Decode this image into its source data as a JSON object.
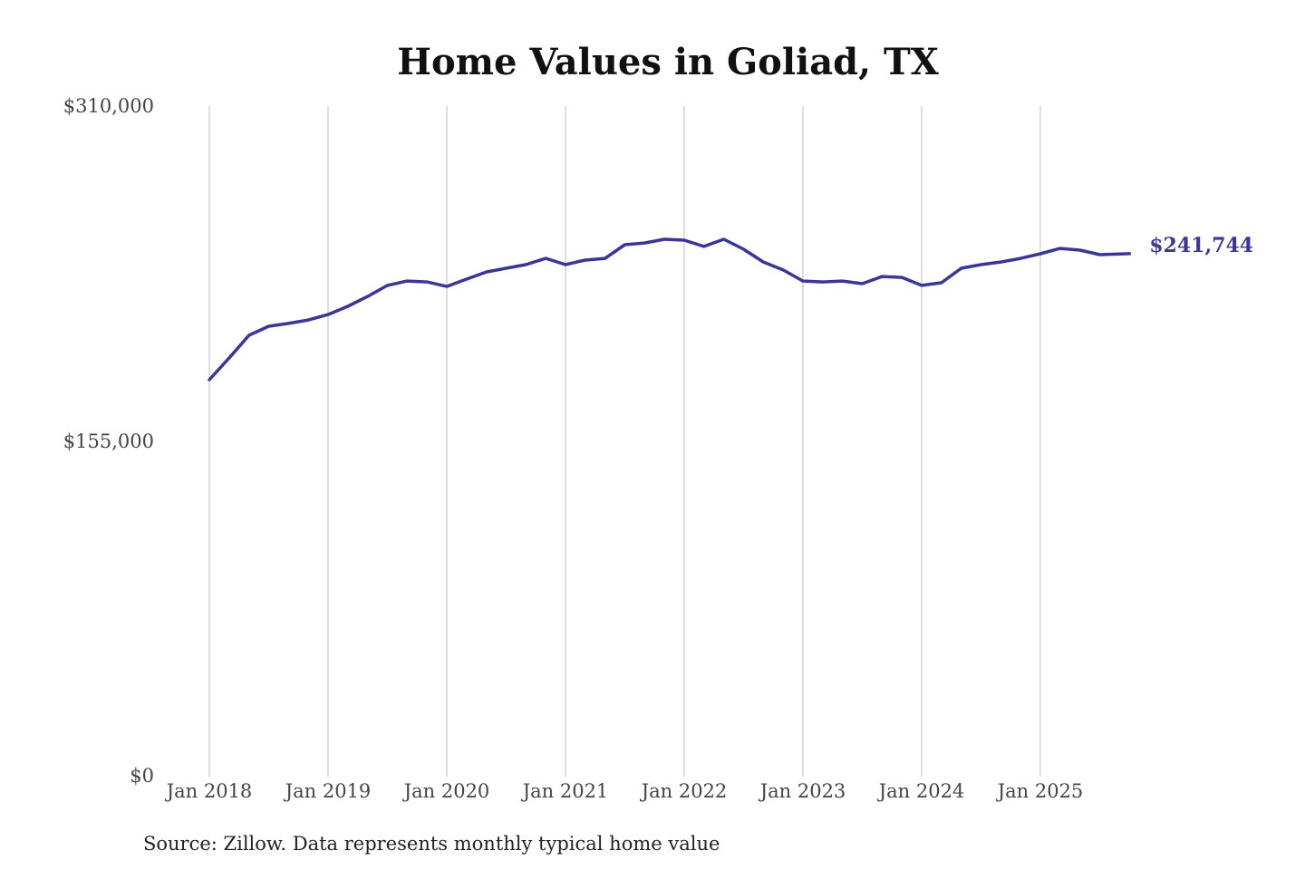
{
  "chart_data": {
    "type": "line",
    "title": "Home Values in Goliad, TX",
    "xlabel": "",
    "ylabel": "",
    "source": "Source: Zillow. Data represents monthly typical home value",
    "ylim": [
      0,
      310000
    ],
    "y_ticks": [
      {
        "value": 0,
        "label": "$0"
      },
      {
        "value": 155000,
        "label": "$155,000"
      },
      {
        "value": 310000,
        "label": "$310,000"
      }
    ],
    "x_ticks": [
      {
        "value": "2018-01",
        "label": "Jan 2018"
      },
      {
        "value": "2019-01",
        "label": "Jan 2019"
      },
      {
        "value": "2020-01",
        "label": "Jan 2020"
      },
      {
        "value": "2021-01",
        "label": "Jan 2021"
      },
      {
        "value": "2022-01",
        "label": "Jan 2022"
      },
      {
        "value": "2023-01",
        "label": "Jan 2023"
      },
      {
        "value": "2024-01",
        "label": "Jan 2024"
      },
      {
        "value": "2025-01",
        "label": "Jan 2025"
      }
    ],
    "grid": "vertical",
    "series": [
      {
        "name": "Typical home value",
        "color": "#3a3596",
        "end_label": "$241,744",
        "x": [
          "2018-01",
          "2018-03",
          "2018-05",
          "2018-07",
          "2018-09",
          "2018-11",
          "2019-01",
          "2019-03",
          "2019-05",
          "2019-07",
          "2019-09",
          "2019-11",
          "2020-01",
          "2020-03",
          "2020-05",
          "2020-07",
          "2020-09",
          "2020-11",
          "2021-01",
          "2021-03",
          "2021-05",
          "2021-07",
          "2021-09",
          "2021-11",
          "2022-01",
          "2022-03",
          "2022-05",
          "2022-07",
          "2022-09",
          "2022-11",
          "2023-01",
          "2023-03",
          "2023-05",
          "2023-07",
          "2023-09",
          "2023-11",
          "2024-01",
          "2024-03",
          "2024-05",
          "2024-07",
          "2024-09",
          "2024-11",
          "2025-01",
          "2025-03",
          "2025-05",
          "2025-07",
          "2025-10"
        ],
        "values": [
          183500,
          193500,
          204000,
          208200,
          209500,
          211100,
          213600,
          217400,
          222000,
          227100,
          229100,
          228700,
          226600,
          230000,
          233300,
          235000,
          236700,
          239600,
          236700,
          238800,
          239600,
          245900,
          246700,
          248400,
          248000,
          245100,
          248400,
          243800,
          237900,
          234200,
          229100,
          228700,
          229100,
          227900,
          231200,
          230800,
          227100,
          228300,
          235000,
          236700,
          237900,
          239600,
          241700,
          244200,
          243400,
          241300,
          241744
        ]
      }
    ]
  }
}
